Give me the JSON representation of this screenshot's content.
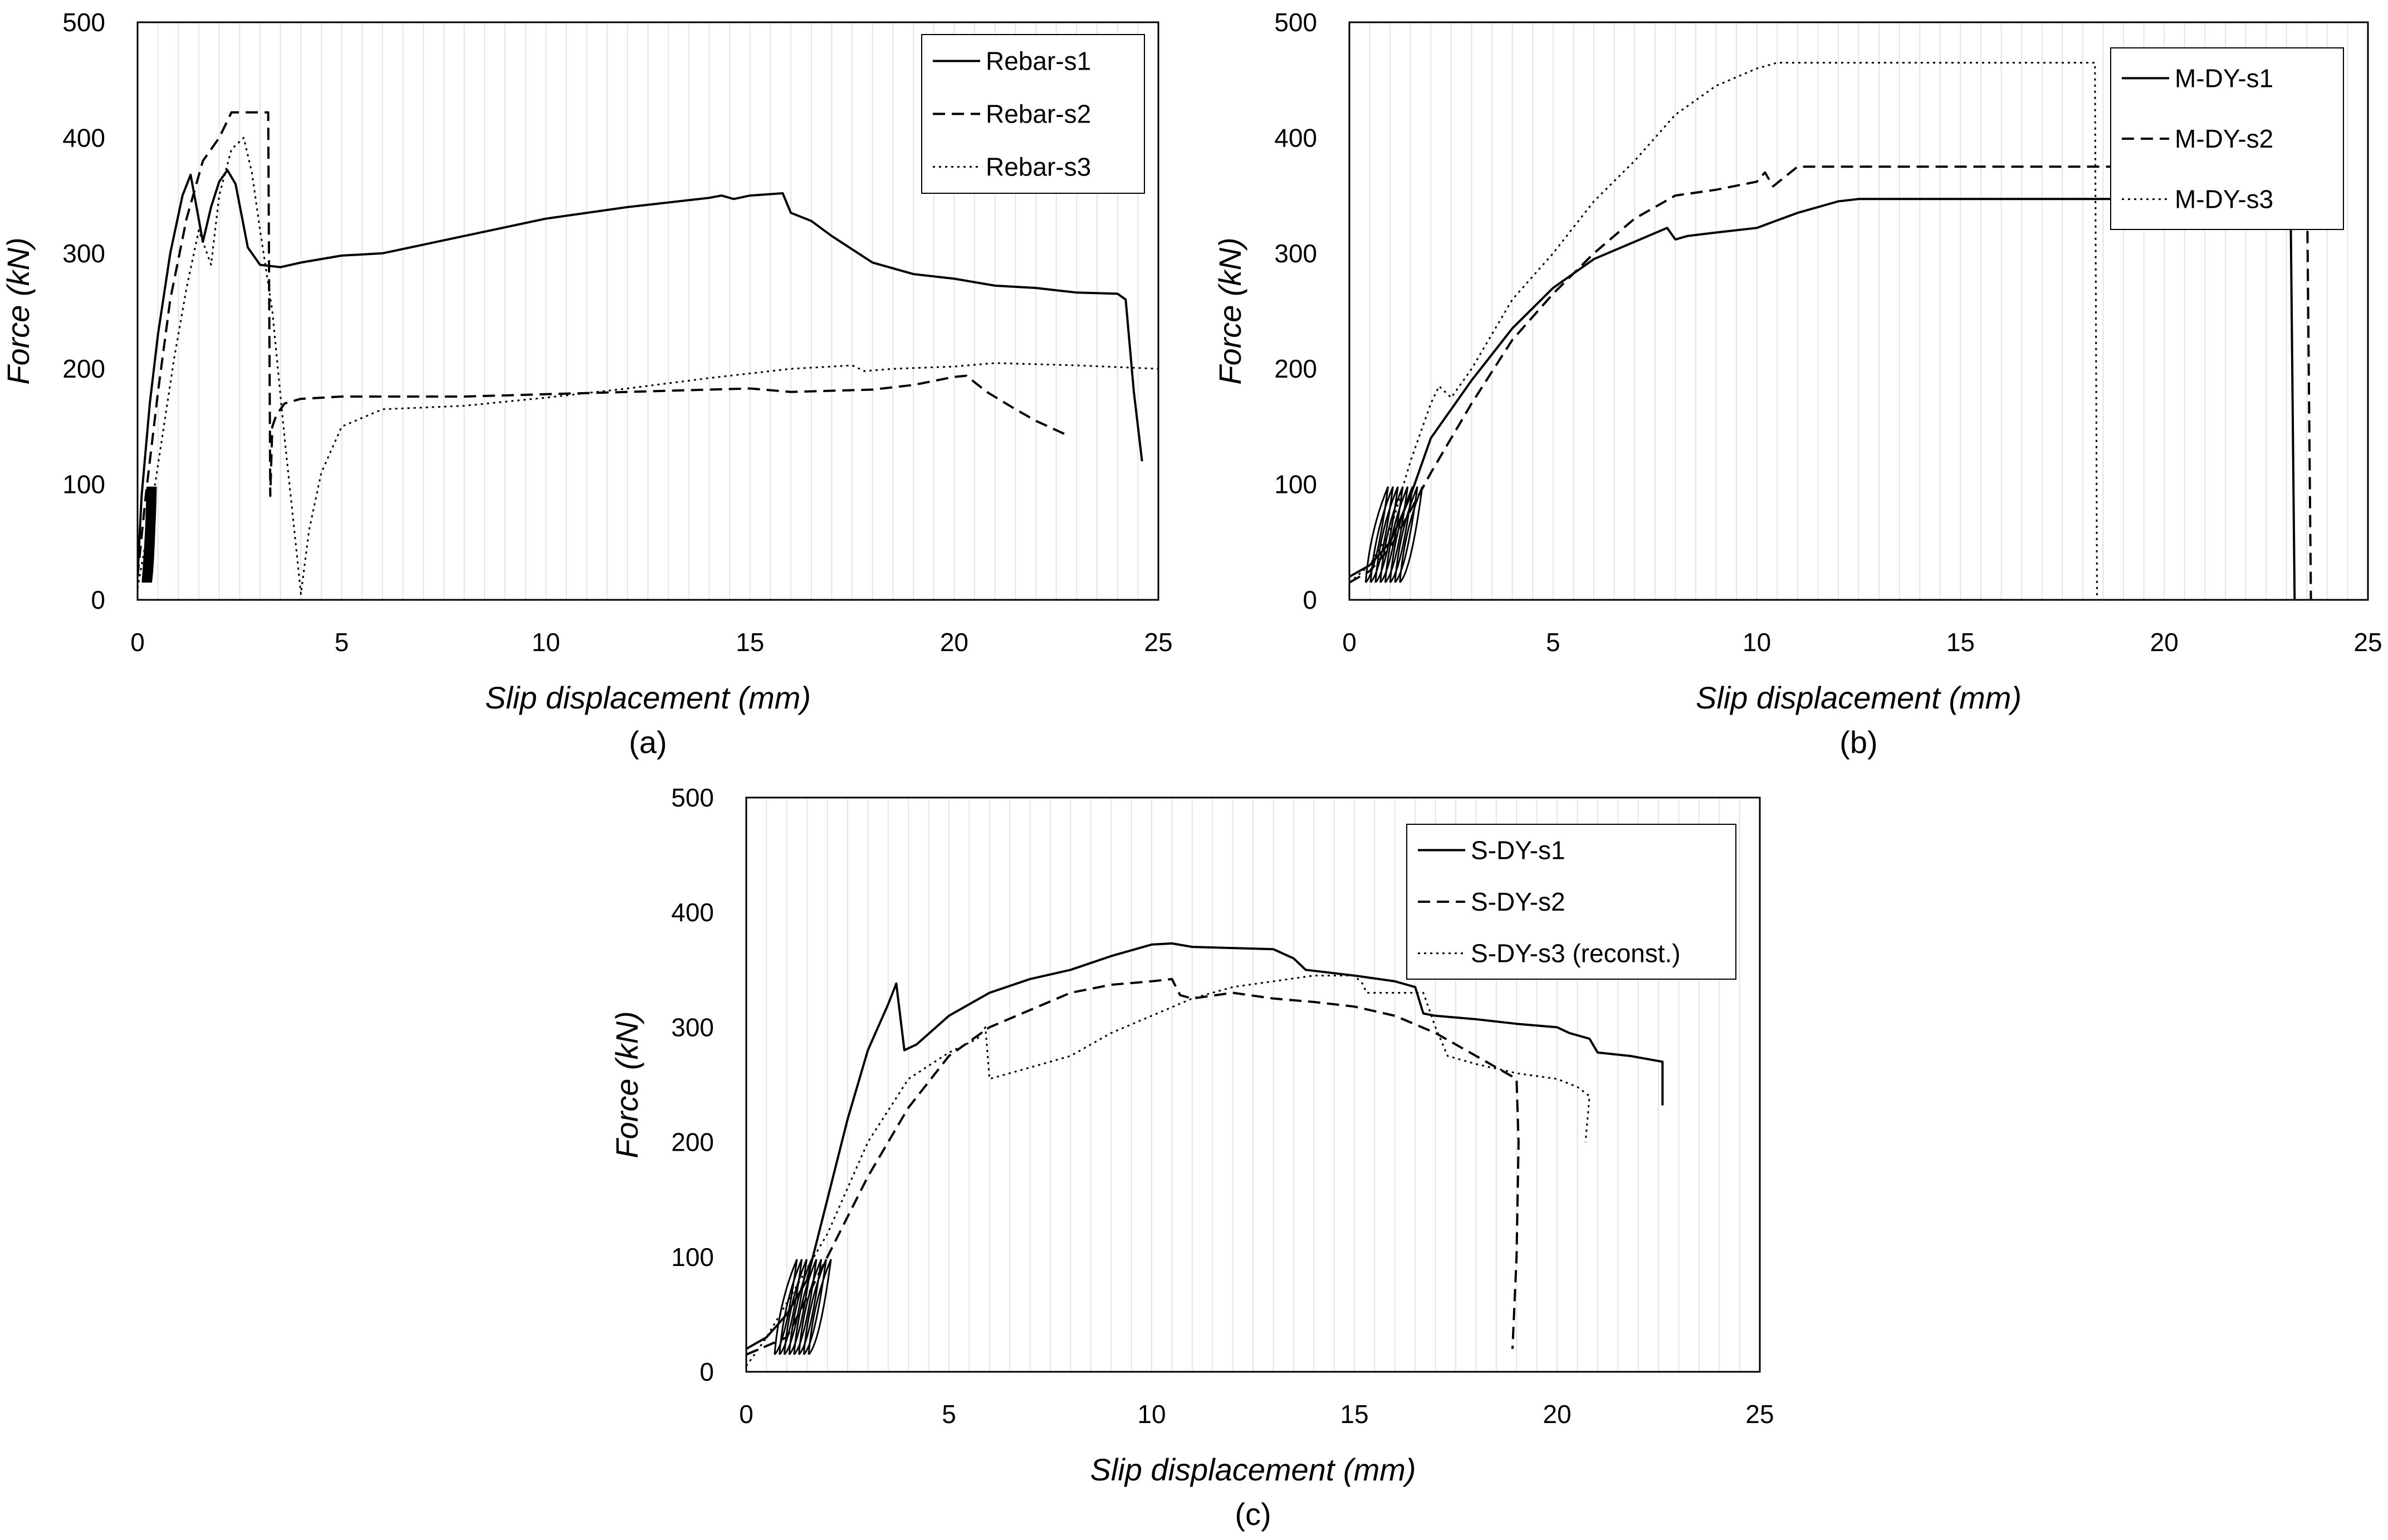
{
  "chart_data": [
    {
      "type": "line",
      "panel_label": "(a)",
      "xlabel": "Slip displacement (mm)",
      "ylabel": "Force (kN)",
      "xlim": [
        0,
        25
      ],
      "ylim": [
        0,
        500
      ],
      "xticks": [
        0,
        5,
        10,
        15,
        20,
        25
      ],
      "yticks": [
        0,
        100,
        200,
        300,
        400,
        500
      ],
      "grid": true,
      "legend_position": "top-right",
      "series": [
        {
          "name": "Rebar-s1",
          "style": "solid",
          "x": [
            0,
            0.1,
            0.3,
            0.5,
            0.8,
            1.1,
            1.3,
            1.6,
            1.8,
            2.0,
            2.2,
            2.4,
            2.7,
            3.0,
            3.5,
            4.0,
            5.0,
            6.0,
            8.0,
            10.0,
            12.0,
            14.0,
            14.3,
            14.6,
            15.0,
            15.8,
            16.0,
            16.5,
            17.0,
            18.0,
            19.0,
            20.0,
            21.0,
            22.0,
            23.0,
            24.0,
            24.2,
            24.4,
            24.6
          ],
          "y": [
            20,
            90,
            170,
            230,
            300,
            350,
            368,
            310,
            340,
            362,
            372,
            360,
            305,
            290,
            288,
            292,
            298,
            300,
            315,
            330,
            340,
            348,
            350,
            347,
            350,
            352,
            335,
            328,
            315,
            292,
            282,
            278,
            272,
            270,
            266,
            265,
            260,
            180,
            120
          ]
        },
        {
          "name": "Rebar-s2",
          "style": "dashed",
          "x": [
            0,
            0.2,
            0.5,
            0.8,
            1.2,
            1.6,
            2.0,
            2.3,
            3.0,
            3.2,
            3.25,
            3.3,
            3.4,
            3.6,
            4.0,
            5.0,
            6.0,
            8.0,
            10.0,
            12.0,
            14.0,
            15.0,
            16.0,
            18.0,
            19.0,
            20.0,
            20.3,
            20.8,
            21.5,
            22.0,
            22.8
          ],
          "y": [
            20,
            90,
            180,
            260,
            330,
            380,
            400,
            422,
            422,
            422,
            90,
            150,
            160,
            170,
            174,
            176,
            176,
            176,
            178,
            180,
            182,
            183,
            180,
            182,
            186,
            193,
            194,
            180,
            165,
            155,
            142
          ]
        },
        {
          "name": "Rebar-s3",
          "style": "dotted",
          "x": [
            0,
            0.3,
            0.6,
            0.9,
            1.2,
            1.5,
            1.8,
            2.0,
            2.3,
            2.6,
            2.8,
            3.0,
            3.3,
            3.6,
            3.9,
            4.0,
            4.2,
            4.5,
            5.0,
            6.0,
            8.0,
            10.0,
            12.0,
            14.0,
            16.0,
            17.5,
            17.8,
            18.5,
            20.0,
            21.0,
            23.0,
            25.0
          ],
          "y": [
            10,
            70,
            140,
            210,
            270,
            320,
            290,
            350,
            390,
            400,
            370,
            320,
            250,
            140,
            40,
            5,
            60,
            110,
            150,
            165,
            168,
            175,
            183,
            192,
            200,
            203,
            198,
            200,
            202,
            205,
            203,
            200
          ]
        }
      ]
    },
    {
      "type": "line",
      "panel_label": "(b)",
      "xlabel": "Slip displacement (mm)",
      "ylabel": "Force (kN)",
      "xlim": [
        0,
        25
      ],
      "ylim": [
        0,
        500
      ],
      "xticks": [
        0,
        5,
        10,
        15,
        20,
        25
      ],
      "yticks": [
        0,
        100,
        200,
        300,
        400,
        500
      ],
      "grid": true,
      "legend_position": "top-right",
      "series": [
        {
          "name": "M-DY-s1",
          "style": "solid",
          "x": [
            0,
            0.5,
            1.0,
            1.5,
            2.0,
            3.0,
            4.0,
            5.0,
            6.0,
            7.0,
            7.8,
            8.0,
            8.3,
            9.0,
            10.0,
            11.0,
            12.0,
            12.5,
            23.1,
            23.2
          ],
          "y": [
            20,
            30,
            50,
            90,
            140,
            190,
            235,
            270,
            295,
            310,
            322,
            312,
            315,
            318,
            322,
            335,
            345,
            347,
            347,
            0
          ]
        },
        {
          "name": "M-DY-s2",
          "style": "dashed",
          "x": [
            0,
            0.5,
            1.0,
            2.0,
            3.0,
            4.0,
            5.0,
            6.0,
            7.0,
            8.0,
            9.0,
            10.0,
            10.2,
            10.4,
            11.0,
            23.5,
            23.6
          ],
          "y": [
            15,
            25,
            45,
            110,
            170,
            225,
            265,
            300,
            330,
            350,
            355,
            362,
            370,
            358,
            375,
            375,
            0
          ]
        },
        {
          "name": "M-DY-s3",
          "style": "dotted",
          "x": [
            0,
            0.5,
            1.0,
            1.5,
            2.0,
            2.2,
            2.5,
            3.0,
            4.0,
            5.0,
            6.0,
            7.0,
            8.0,
            9.0,
            10.0,
            10.5,
            18.3,
            18.35
          ],
          "y": [
            15,
            30,
            60,
            120,
            170,
            185,
            175,
            200,
            260,
            300,
            345,
            380,
            420,
            445,
            460,
            465,
            465,
            0
          ]
        }
      ]
    },
    {
      "type": "line",
      "panel_label": "(c)",
      "xlabel": "Slip displacement (mm)",
      "ylabel": "Force (kN)",
      "xlim": [
        0,
        25
      ],
      "ylim": [
        0,
        500
      ],
      "xticks": [
        0,
        5,
        10,
        15,
        20,
        25
      ],
      "yticks": [
        0,
        100,
        200,
        300,
        400,
        500
      ],
      "grid": true,
      "legend_position": "top-right",
      "series": [
        {
          "name": "S-DY-s1",
          "style": "solid",
          "x": [
            0,
            0.5,
            1.0,
            1.5,
            2.0,
            2.5,
            3.0,
            3.5,
            3.7,
            3.9,
            4.2,
            5.0,
            6.0,
            7.0,
            8.0,
            9.0,
            10.0,
            10.5,
            11.0,
            13.0,
            13.5,
            13.8,
            15.0,
            16.0,
            16.5,
            16.7,
            17.0,
            18.0,
            19.0,
            20.0,
            20.3,
            20.8,
            21.0,
            21.8,
            22.6,
            22.6
          ],
          "y": [
            20,
            30,
            50,
            80,
            150,
            220,
            280,
            320,
            338,
            280,
            285,
            310,
            330,
            342,
            350,
            362,
            372,
            373,
            370,
            368,
            360,
            350,
            345,
            340,
            335,
            312,
            310,
            307,
            303,
            300,
            295,
            290,
            278,
            275,
            270,
            232
          ]
        },
        {
          "name": "S-DY-s2",
          "style": "dashed",
          "x": [
            0,
            1.0,
            2.0,
            3.0,
            4.0,
            5.0,
            6.0,
            7.0,
            8.0,
            9.0,
            10.0,
            10.5,
            10.7,
            11.0,
            12.0,
            13.0,
            14.0,
            15.0,
            16.0,
            17.0,
            18.0,
            19.0,
            19.05,
            19.0,
            18.9
          ],
          "y": [
            15,
            30,
            100,
            170,
            230,
            275,
            300,
            315,
            330,
            337,
            340,
            342,
            328,
            325,
            330,
            325,
            322,
            318,
            310,
            295,
            275,
            255,
            200,
            100,
            20
          ]
        },
        {
          "name": "S-DY-s3 (reconst.)",
          "style": "dotted",
          "x": [
            0,
            0.5,
            1.0,
            2.0,
            3.0,
            4.0,
            5.0,
            5.7,
            5.9,
            6.0,
            7.0,
            8.0,
            9.0,
            10.0,
            11.0,
            12.0,
            13.0,
            14.0,
            15.0,
            15.2,
            15.3,
            16.0,
            16.7,
            17.0,
            17.3,
            18.0,
            19.0,
            20.0,
            20.5,
            20.8,
            20.7
          ],
          "y": [
            5,
            30,
            60,
            120,
            200,
            255,
            278,
            290,
            300,
            255,
            265,
            275,
            295,
            310,
            325,
            335,
            340,
            345,
            345,
            338,
            330,
            330,
            330,
            300,
            275,
            268,
            260,
            255,
            248,
            240,
            200
          ]
        }
      ]
    }
  ]
}
